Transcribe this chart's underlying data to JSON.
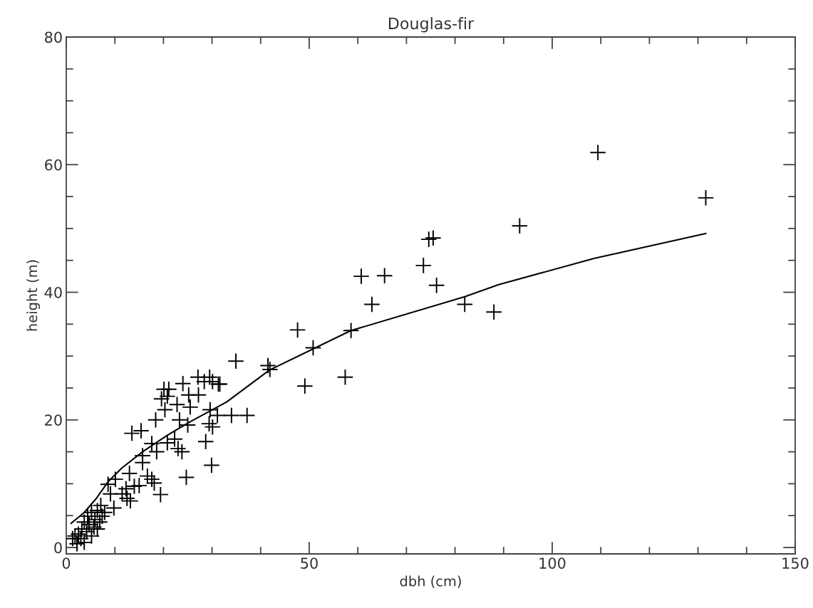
{
  "chart_data": {
    "type": "scatter",
    "title": "Douglas-fir",
    "xlabel": "dbh (cm)",
    "ylabel": "height (m)",
    "xlim": [
      0,
      150
    ],
    "ylim": [
      -1,
      80
    ],
    "xticks": [
      0,
      {
        "value": 10,
        "label": null
      },
      {
        "value": 20,
        "label": null
      },
      {
        "value": 30,
        "label": null
      },
      {
        "value": 40,
        "label": null
      },
      50,
      {
        "value": 60,
        "label": null
      },
      {
        "value": 70,
        "label": null
      },
      {
        "value": 80,
        "label": null
      },
      {
        "value": 90,
        "label": null
      },
      100,
      {
        "value": 110,
        "label": null
      },
      {
        "value": 120,
        "label": null
      },
      {
        "value": 130,
        "label": null
      },
      {
        "value": 140,
        "label": null
      },
      150
    ],
    "yticks": [
      0,
      {
        "value": 5,
        "label": null
      },
      {
        "value": 10,
        "label": null
      },
      {
        "value": 15,
        "label": null
      },
      20,
      {
        "value": 25,
        "label": null
      },
      {
        "value": 30,
        "label": null
      },
      {
        "value": 35,
        "label": null
      },
      40,
      {
        "value": 45,
        "label": null
      },
      {
        "value": 50,
        "label": null
      },
      {
        "value": 55,
        "label": null
      },
      60,
      {
        "value": 65,
        "label": null
      },
      {
        "value": 70,
        "label": null
      },
      {
        "value": 75,
        "label": null
      },
      80
    ],
    "grid": false,
    "legend": false,
    "series": [
      {
        "color": "#000000",
        "marker": "cross",
        "x": [
          109.4,
          131.6,
          93.3,
          74.6,
          75.5,
          73.5,
          60.7,
          65.5,
          76.2,
          62.9,
          82.0,
          88.0,
          47.6,
          58.6,
          50.8,
          34.9,
          41.5,
          41.9,
          49.1,
          57.4,
          31.3,
          27.1,
          29.5,
          28.4,
          30.1,
          31.6,
          24.0,
          21.1,
          20.1,
          25.2,
          27.2,
          19.6,
          20.8,
          22.8,
          25.5,
          29.6,
          31.1,
          34.0,
          37.2,
          20.3,
          18.4,
          23.3,
          25.0,
          29.4,
          30.1,
          13.5,
          15.4,
          17.6,
          20.8,
          22.3,
          23.0,
          23.8,
          18.6,
          15.7,
          15.7,
          28.7,
          29.9,
          24.7,
          13.0,
          16.7,
          17.6,
          18.1,
          19.4,
          10.1,
          8.6,
          12.3,
          11.5,
          14.0,
          15.0,
          12.5,
          13.2,
          9.1,
          9.8,
          7.1,
          6.4,
          7.4,
          5.2,
          4.4,
          5.9,
          4.7,
          3.7,
          5.7,
          3.2,
          4.2,
          2.5,
          1.8,
          3.0,
          1.3,
          3.7,
          2.2,
          5.2,
          6.4,
          6.9,
          7.9
        ],
        "values": [
          61.9,
          54.8,
          50.4,
          48.3,
          48.5,
          44.2,
          42.5,
          42.6,
          41.1,
          38.1,
          38.1,
          36.9,
          34.1,
          34.0,
          31.3,
          29.2,
          28.5,
          27.9,
          25.3,
          26.7,
          25.6,
          26.7,
          26.7,
          26.0,
          26.0,
          25.6,
          25.7,
          24.8,
          24.8,
          23.9,
          23.9,
          23.3,
          23.7,
          22.4,
          22.0,
          21.6,
          20.7,
          20.7,
          20.7,
          21.6,
          20.0,
          20.0,
          19.2,
          19.4,
          18.9,
          17.9,
          18.3,
          16.3,
          16.4,
          17.0,
          15.5,
          15.0,
          15.0,
          14.4,
          13.3,
          16.6,
          12.9,
          11.0,
          11.6,
          11.2,
          10.7,
          10.1,
          8.3,
          10.7,
          9.9,
          9.2,
          8.4,
          9.6,
          9.7,
          7.7,
          7.3,
          8.4,
          6.2,
          6.6,
          5.8,
          4.9,
          5.5,
          4.9,
          4.4,
          3.6,
          4.0,
          3.2,
          2.9,
          2.5,
          2.1,
          1.8,
          1.4,
          1.4,
          0.8,
          0.6,
          1.8,
          2.9,
          4.0,
          5.5
        ]
      },
      {
        "type": "line",
        "color": "#000000",
        "line_style": "solid",
        "x": [
          1.0,
          3.7,
          6.2,
          8.6,
          11.5,
          15.9,
          20.8,
          25.7,
          33.0,
          41.8,
          58.6,
          82.0,
          89.0,
          108.6,
          131.6
        ],
        "values": [
          3.8,
          5.5,
          7.7,
          10.3,
          12.5,
          15.1,
          17.6,
          19.8,
          22.8,
          27.8,
          34.0,
          39.3,
          41.2,
          45.3,
          49.2
        ]
      }
    ]
  }
}
